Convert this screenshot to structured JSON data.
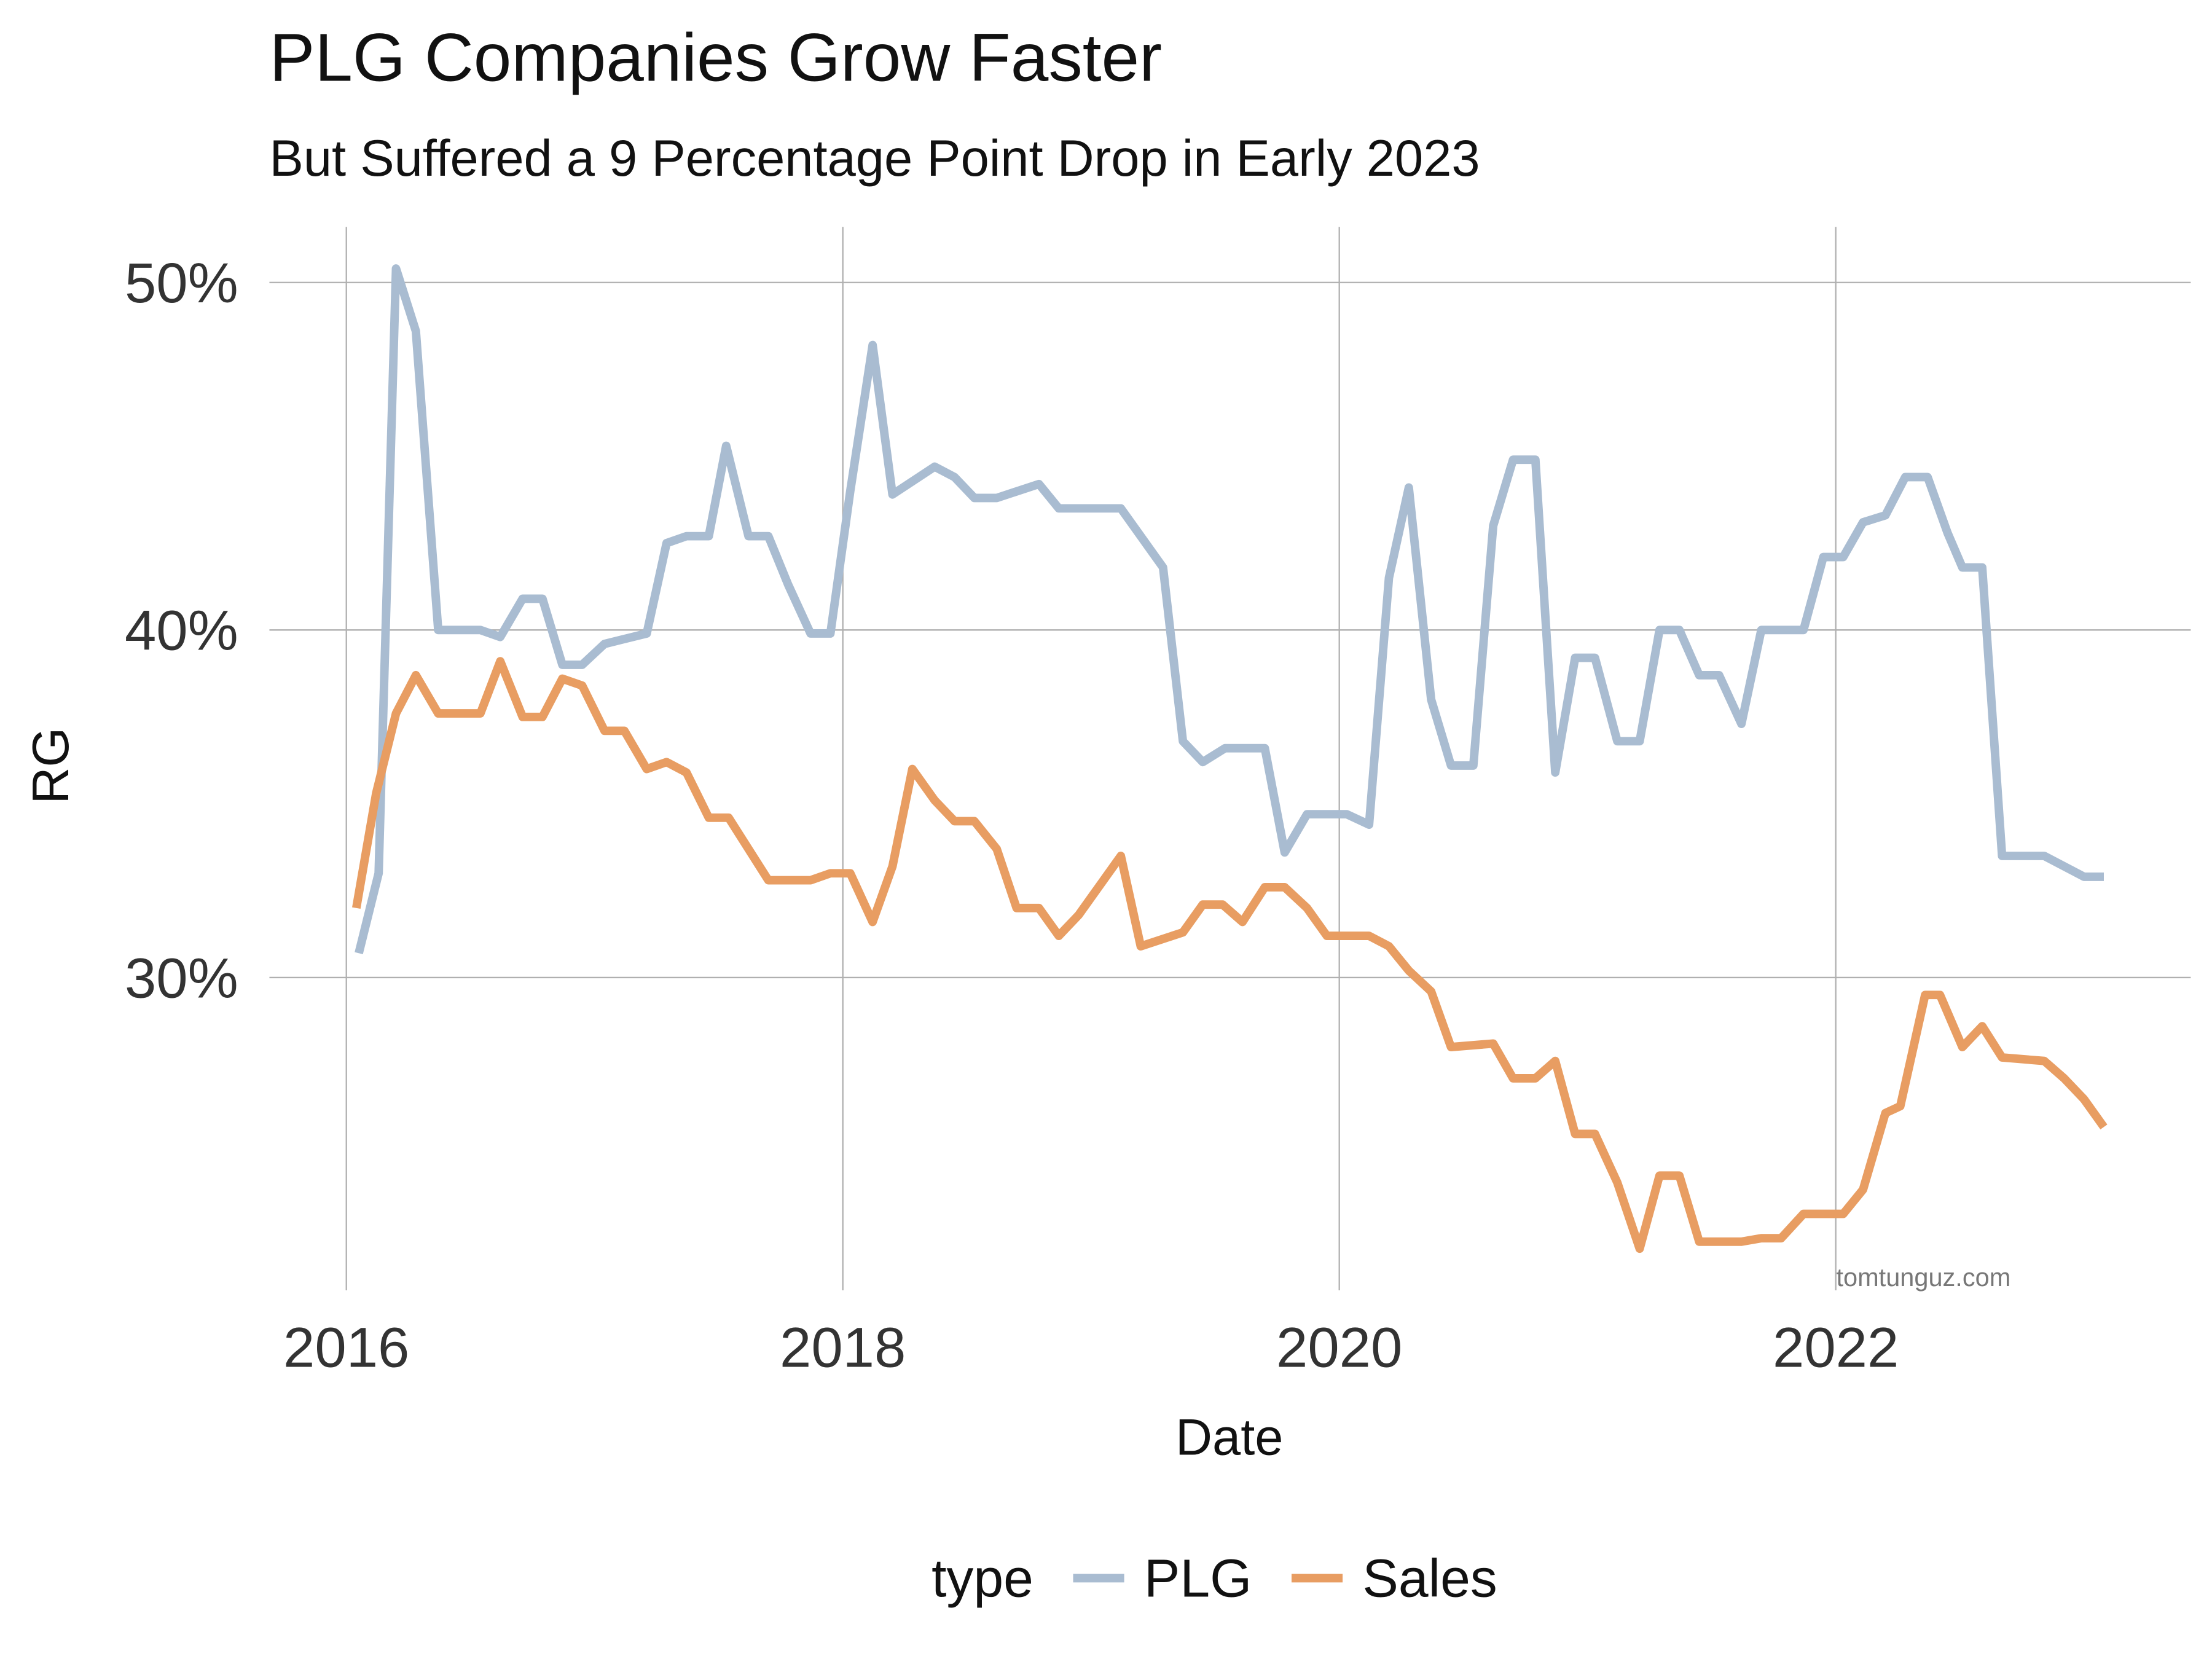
{
  "chart_data": {
    "type": "line",
    "title": "PLG Companies Grow Faster",
    "subtitle": "But Suffered a 9 Percentage Point Drop in Early 2023",
    "x_label": "Date",
    "y_label": "RG",
    "annotation": "tomtunguz.com",
    "legend_title": "type",
    "legend": "bottom",
    "grid": true,
    "xlim": [
      2015.69,
      2023.43
    ],
    "xticks": [
      2016,
      2018,
      2020,
      2022
    ],
    "ylim": [
      21.0,
      51.6
    ],
    "yticks": [
      {
        "value": 30,
        "label": "30%"
      },
      {
        "value": 40,
        "label": "40%"
      },
      {
        "value": 50,
        "label": "50%"
      }
    ],
    "series": [
      {
        "name": "PLG",
        "color": "#a9bcd1",
        "x": [
          2016.05,
          2016.13,
          2016.2,
          2016.28,
          2016.37,
          2016.54,
          2016.62,
          2016.71,
          2016.79,
          2016.87,
          2016.95,
          2017.04,
          2017.21,
          2017.29,
          2017.37,
          2017.46,
          2017.53,
          2017.62,
          2017.7,
          2017.78,
          2017.87,
          2017.95,
          2018.03,
          2018.12,
          2018.2,
          2018.37,
          2018.45,
          2018.53,
          2018.62,
          2018.79,
          2018.87,
          2019.12,
          2019.21,
          2019.29,
          2019.37,
          2019.45,
          2019.54,
          2019.7,
          2019.78,
          2019.87,
          2020.03,
          2020.12,
          2020.2,
          2020.28,
          2020.37,
          2020.45,
          2020.54,
          2020.62,
          2020.7,
          2020.79,
          2020.87,
          2020.95,
          2021.03,
          2021.12,
          2021.21,
          2021.29,
          2021.37,
          2021.45,
          2021.53,
          2021.62,
          2021.7,
          2021.87,
          2021.95,
          2022.03,
          2022.11,
          2022.2,
          2022.28,
          2022.37,
          2022.45,
          2022.51,
          2022.59,
          2022.67,
          2022.84,
          2023.0,
          2023.08
        ],
        "values": [
          30.7,
          33.0,
          50.4,
          48.6,
          40.0,
          40.0,
          39.8,
          40.9,
          40.9,
          39.0,
          39.0,
          39.6,
          39.9,
          42.5,
          42.7,
          42.7,
          45.3,
          42.7,
          42.7,
          41.3,
          39.9,
          39.9,
          44.0,
          48.2,
          43.9,
          44.7,
          44.4,
          43.8,
          43.8,
          44.2,
          43.5,
          43.5,
          42.6,
          41.8,
          36.8,
          36.2,
          36.6,
          36.6,
          33.6,
          34.7,
          34.7,
          34.4,
          41.5,
          44.1,
          38.0,
          36.1,
          36.1,
          43.0,
          44.9,
          44.9,
          35.9,
          39.2,
          39.2,
          36.8,
          36.8,
          40.0,
          40.0,
          38.7,
          38.7,
          37.3,
          40.0,
          40.0,
          42.1,
          42.1,
          43.1,
          43.3,
          44.4,
          44.4,
          42.8,
          41.8,
          41.8,
          33.5,
          33.5,
          32.9,
          32.9
        ]
      },
      {
        "name": "Sales",
        "color": "#e89d62",
        "x": [
          2016.04,
          2016.12,
          2016.2,
          2016.28,
          2016.37,
          2016.54,
          2016.62,
          2016.71,
          2016.79,
          2016.87,
          2016.95,
          2017.04,
          2017.12,
          2017.21,
          2017.29,
          2017.37,
          2017.46,
          2017.54,
          2017.62,
          2017.7,
          2017.87,
          2017.95,
          2018.03,
          2018.12,
          2018.2,
          2018.28,
          2018.37,
          2018.45,
          2018.53,
          2018.62,
          2018.7,
          2018.79,
          2018.87,
          2018.95,
          2019.12,
          2019.2,
          2019.37,
          2019.45,
          2019.53,
          2019.61,
          2019.7,
          2019.78,
          2019.87,
          2019.95,
          2020.12,
          2020.2,
          2020.28,
          2020.37,
          2020.45,
          2020.62,
          2020.7,
          2020.79,
          2020.87,
          2020.95,
          2021.03,
          2021.12,
          2021.21,
          2021.29,
          2021.37,
          2021.45,
          2021.62,
          2021.7,
          2021.78,
          2021.87,
          2022.03,
          2022.11,
          2022.2,
          2022.26,
          2022.36,
          2022.42,
          2022.51,
          2022.59,
          2022.67,
          2022.84,
          2022.92,
          2023.0,
          2023.08
        ],
        "values": [
          32.0,
          35.3,
          37.6,
          38.7,
          37.6,
          37.6,
          39.1,
          37.5,
          37.5,
          38.6,
          38.4,
          37.1,
          37.1,
          36.0,
          36.2,
          35.9,
          34.6,
          34.6,
          33.7,
          32.8,
          32.8,
          33.0,
          33.0,
          31.6,
          33.2,
          36.0,
          35.1,
          34.5,
          34.5,
          33.7,
          32.0,
          32.0,
          31.2,
          31.8,
          33.5,
          30.9,
          31.3,
          32.1,
          32.1,
          31.6,
          32.6,
          32.6,
          32.0,
          31.2,
          31.2,
          30.9,
          30.2,
          29.6,
          28.0,
          28.1,
          27.1,
          27.1,
          27.6,
          25.5,
          25.5,
          24.1,
          22.2,
          24.3,
          24.3,
          22.4,
          22.4,
          22.5,
          22.5,
          23.2,
          23.2,
          23.9,
          26.1,
          26.3,
          29.5,
          29.5,
          28.0,
          28.6,
          27.7,
          27.6,
          27.1,
          26.5,
          25.7
        ]
      }
    ]
  }
}
